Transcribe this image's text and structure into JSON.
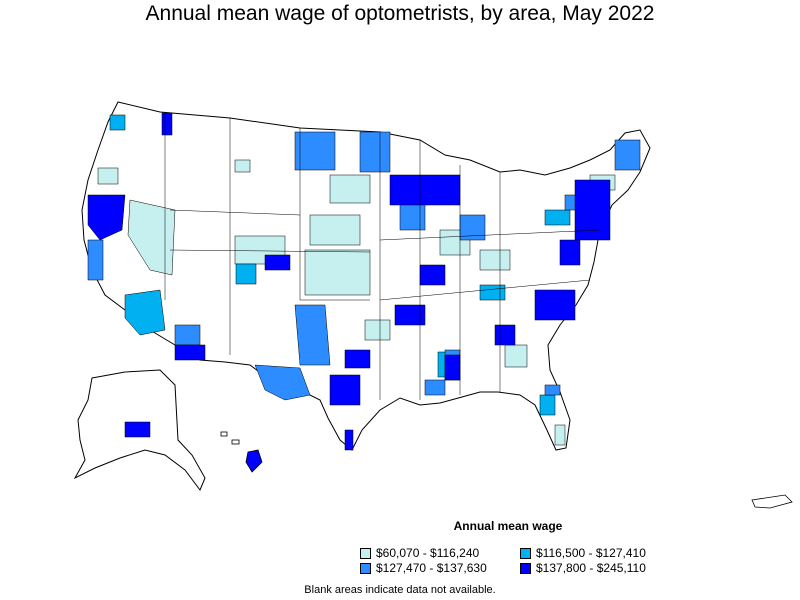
{
  "title": "Annual mean wage of optometrists, by area, May 2022",
  "legend": {
    "title": "Annual mean wage",
    "items": [
      {
        "label": "$60,070 - $116,240",
        "color": "#c6f0f0"
      },
      {
        "label": "$116,500 - $127,410",
        "color": "#00b0f0"
      },
      {
        "label": "$127,470 - $137,630",
        "color": "#2d8cff"
      },
      {
        "label": "$137,800 - $245,110",
        "color": "#0000ff"
      }
    ]
  },
  "note": "Blank areas indicate data not available."
}
